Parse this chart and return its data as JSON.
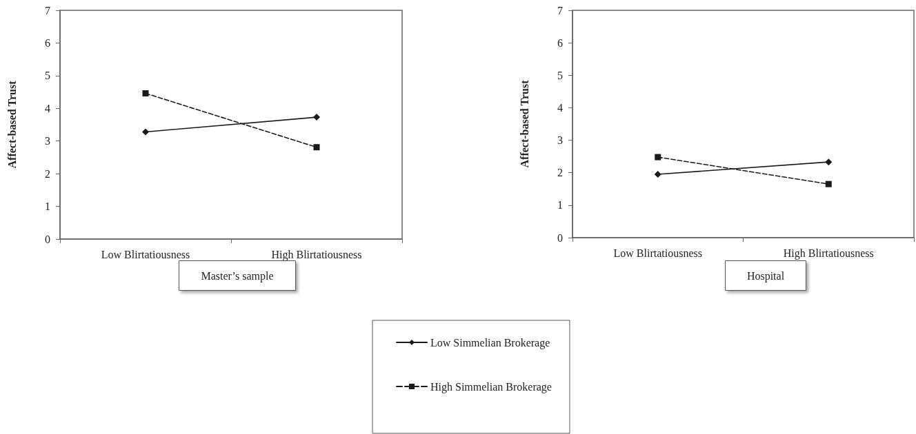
{
  "chart_data": [
    {
      "type": "line",
      "title": "Master’s sample",
      "ylabel": "Affect-based Trust",
      "categories": [
        "Low Blirtatiousness",
        "High Blirtatiousness"
      ],
      "ylim": [
        0,
        7
      ],
      "yticks": [
        0,
        1,
        2,
        3,
        4,
        5,
        6,
        7
      ],
      "legend": "bottom",
      "series": [
        {
          "name": "Low Simmelian Brokerage",
          "color": "#1a1a1a",
          "values": [
            3.28,
            3.73
          ],
          "marker": "diamond",
          "line_style": "solid"
        },
        {
          "name": "High Simmelian Brokerage",
          "color": "#1a1a1a",
          "values": [
            4.46,
            2.81
          ],
          "marker": "square",
          "line_style": "dashed"
        }
      ]
    },
    {
      "type": "line",
      "title": "Hospital",
      "ylabel": "Affect-based Trust",
      "categories": [
        "Low Blirtatiousness",
        "High Blirtatiousness"
      ],
      "ylim": [
        0,
        7
      ],
      "yticks": [
        0,
        1,
        2,
        3,
        4,
        5,
        6,
        7
      ],
      "legend": false,
      "series": [
        {
          "color": "#1a1a1a",
          "values": [
            1.95,
            2.33
          ],
          "marker": "diamond",
          "line_style": "solid"
        },
        {
          "color": "#1a1a1a",
          "values": [
            2.48,
            1.65
          ],
          "marker": "square",
          "line_style": "dashed"
        }
      ]
    }
  ]
}
